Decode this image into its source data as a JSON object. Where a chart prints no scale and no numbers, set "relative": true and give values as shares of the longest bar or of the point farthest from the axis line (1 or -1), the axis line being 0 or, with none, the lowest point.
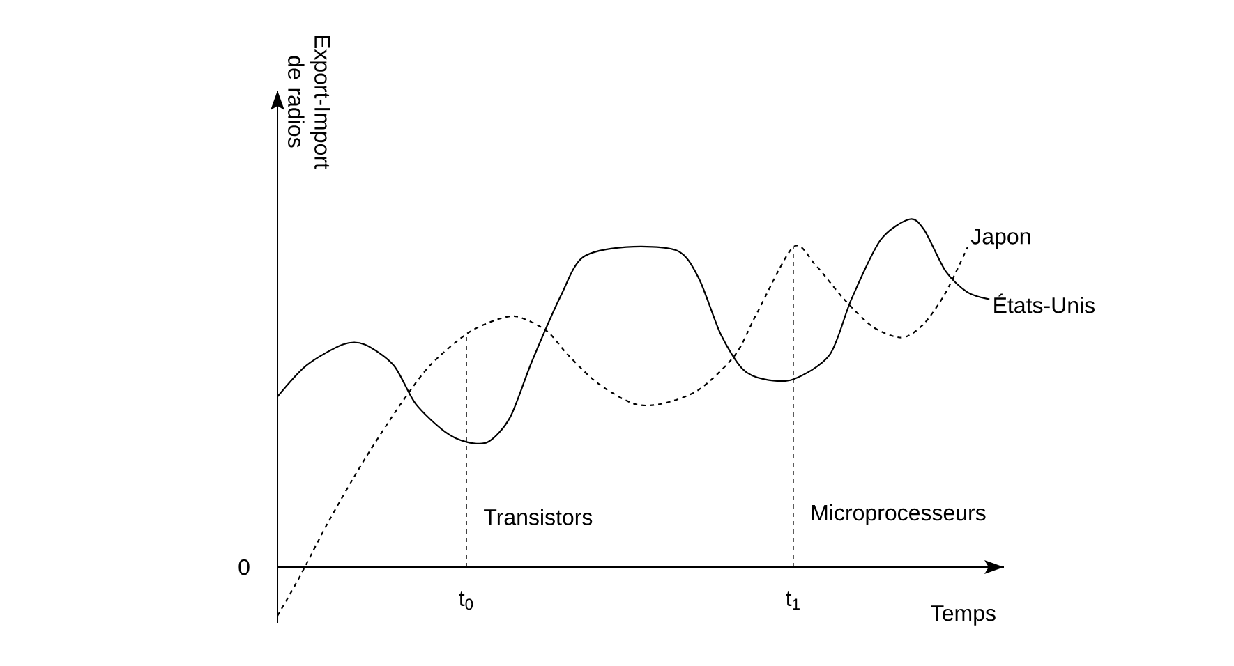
{
  "chart_data": {
    "type": "line",
    "relative": true,
    "xlabel": "Temps",
    "ylabel": "Export-Import de radios",
    "xlim": [
      0,
      1
    ],
    "xticks": [
      {
        "value": 0.26,
        "label": "t$_{0}$"
      },
      {
        "value": 0.71,
        "label": "t$_{1}$"
      }
    ],
    "legend": false,
    "series": [
      {
        "name": "Japon",
        "color": "#000000",
        "line_style": "dashed",
        "x": [
          0.0,
          0.03,
          0.07,
          0.12,
          0.17,
          0.21,
          0.26,
          0.3,
          0.33,
          0.37,
          0.4,
          0.44,
          0.49,
          0.53,
          0.58,
          0.63,
          0.66,
          0.71,
          0.74,
          0.78,
          0.82,
          0.86,
          0.89,
          0.92,
          0.95
        ],
        "values": [
          -0.14,
          -0.03,
          0.13,
          0.31,
          0.47,
          0.58,
          0.67,
          0.71,
          0.72,
          0.68,
          0.61,
          0.53,
          0.47,
          0.47,
          0.51,
          0.61,
          0.73,
          0.92,
          0.87,
          0.77,
          0.69,
          0.66,
          0.7,
          0.79,
          0.92
        ]
      },
      {
        "name": "États-Unis",
        "color": "#000000",
        "line_style": "solid",
        "x": [
          0.0,
          0.04,
          0.09,
          0.12,
          0.16,
          0.19,
          0.23,
          0.26,
          0.29,
          0.32,
          0.35,
          0.39,
          0.42,
          0.48,
          0.55,
          0.58,
          0.61,
          0.64,
          0.67,
          0.71,
          0.76,
          0.79,
          0.83,
          0.87,
          0.89,
          0.92,
          0.95,
          0.98
        ],
        "values": [
          0.49,
          0.58,
          0.64,
          0.64,
          0.58,
          0.47,
          0.39,
          0.36,
          0.36,
          0.43,
          0.59,
          0.78,
          0.89,
          0.92,
          0.91,
          0.83,
          0.67,
          0.57,
          0.54,
          0.54,
          0.61,
          0.77,
          0.94,
          1.0,
          0.97,
          0.85,
          0.79,
          0.77
        ]
      }
    ],
    "ref_lines": [
      {
        "axis": "x",
        "value": 0.26,
        "label": "Transistors",
        "line_style": "dashed",
        "color": "#000000"
      },
      {
        "axis": "x",
        "value": 0.71,
        "label": "Microprocesseurs",
        "line_style": "dashed",
        "color": "#000000"
      }
    ],
    "annotations": [
      "0"
    ]
  }
}
